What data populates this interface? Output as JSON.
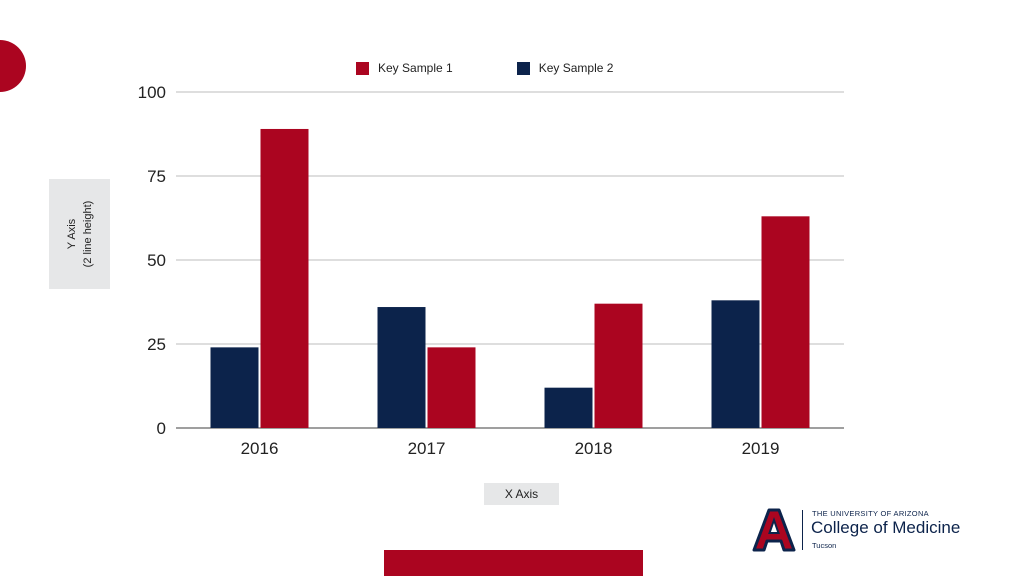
{
  "chart_data": {
    "type": "bar",
    "categories": [
      "2016",
      "2017",
      "2018",
      "2019"
    ],
    "series": [
      {
        "name": "Key Sample 2",
        "color": "#0c234b",
        "values": [
          24,
          36,
          12,
          38
        ]
      },
      {
        "name": "Key Sample 1",
        "color": "#ab0520",
        "values": [
          89,
          24,
          37,
          63
        ]
      }
    ],
    "legend_order": [
      "Key Sample 1",
      "Key Sample 2"
    ],
    "legend_placement": "top",
    "xlabel": "X Axis",
    "ylabel_line1": "Y Axis",
    "ylabel_line2": "(2 line height)",
    "ylim": [
      0,
      100
    ],
    "yticks": [
      "0",
      "25",
      "50",
      "75",
      "100"
    ],
    "grid": true
  },
  "legend": {
    "item1": {
      "label": "Key Sample 1",
      "color": "#ab0520"
    },
    "item2": {
      "label": "Key Sample 2",
      "color": "#0c234b"
    }
  },
  "logo": {
    "line1": "THE UNIVERSITY OF ARIZONA",
    "line2": "College of Medicine",
    "line3": "Tucson",
    "icon": "university-of-arizona-a-logo"
  },
  "colors": {
    "brand_red": "#ab0520",
    "brand_navy": "#0c234b",
    "label_box": "#e6e7e8"
  }
}
